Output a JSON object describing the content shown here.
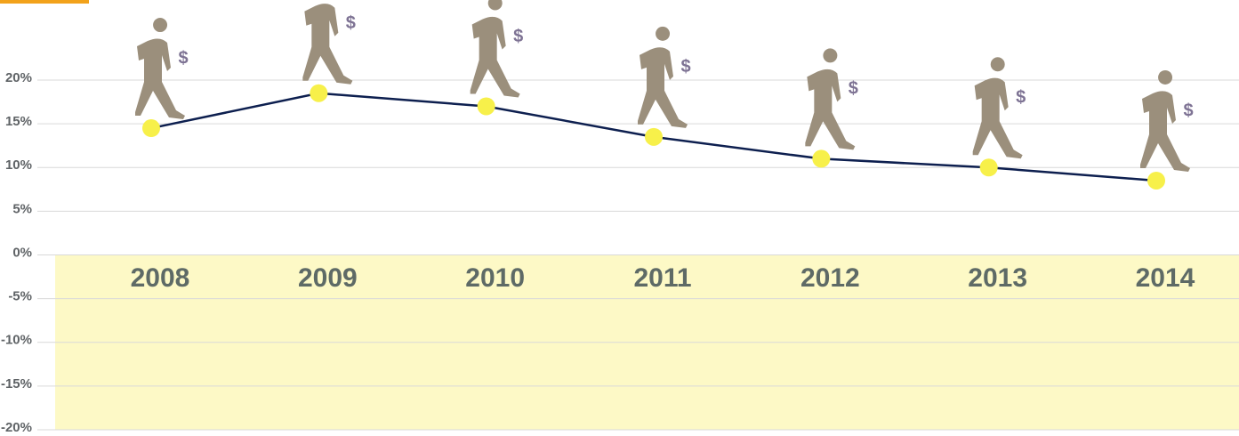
{
  "chart_data": {
    "type": "line",
    "categories": [
      "2008",
      "2009",
      "2010",
      "2011",
      "2012",
      "2013",
      "2014"
    ],
    "values": [
      14.5,
      18.5,
      17,
      13.5,
      11,
      10,
      8.5
    ],
    "color": "#0d1f4f",
    "marker_color": "#f7f04a",
    "band_color": "#fdf9c6",
    "ylim": [
      -20,
      20
    ],
    "yticks": [
      {
        "value": -20,
        "label": "-20%"
      },
      {
        "value": -15,
        "label": "-15%"
      },
      {
        "value": -10,
        "label": "-10%"
      },
      {
        "value": -5,
        "label": "-5%"
      },
      {
        "value": 0,
        "label": "0%"
      },
      {
        "value": 5,
        "label": "5%"
      },
      {
        "value": 10,
        "label": "10%"
      },
      {
        "value": 15,
        "label": "15%"
      },
      {
        "value": 20,
        "label": "20%"
      }
    ],
    "grid": true
  }
}
